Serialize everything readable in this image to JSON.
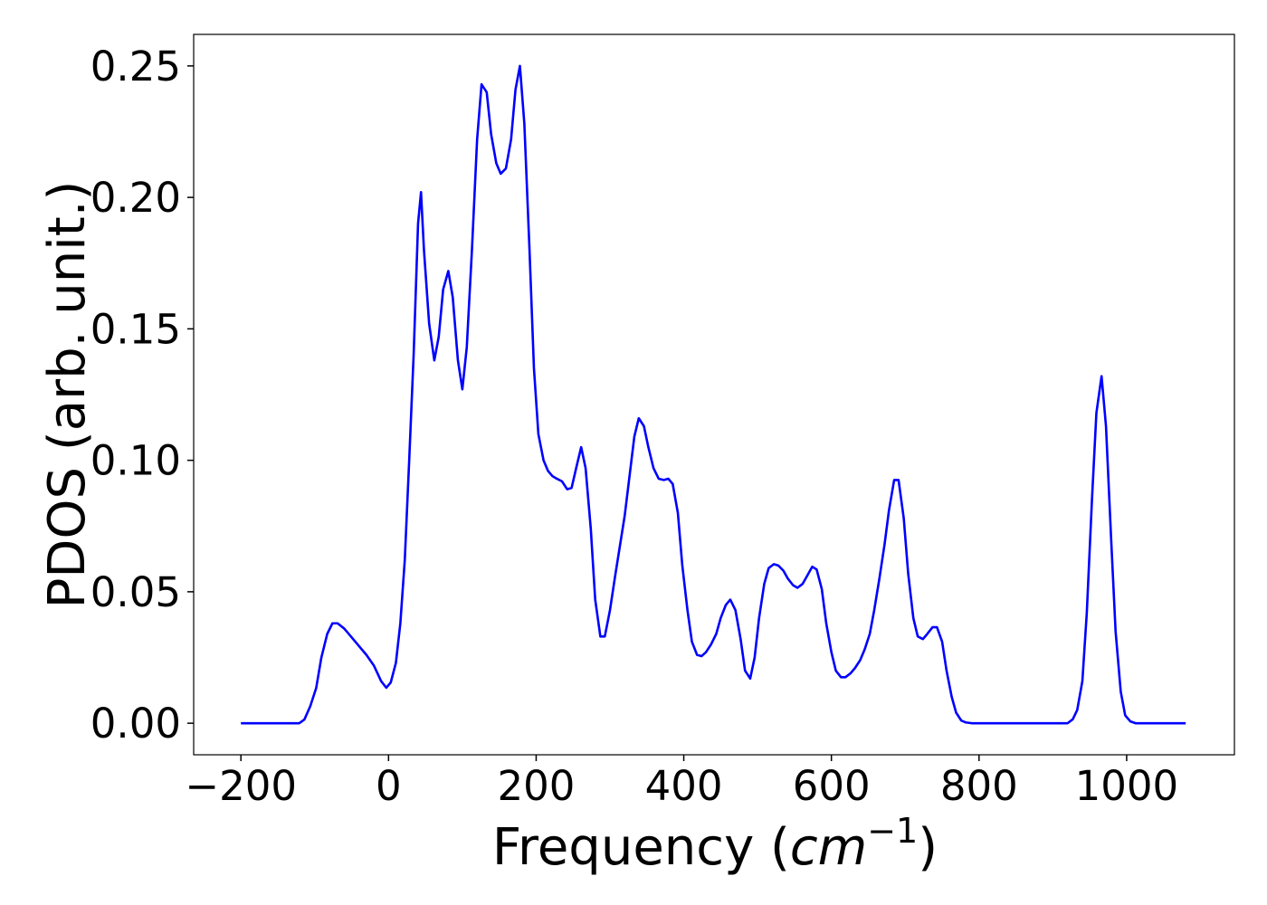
{
  "chart_data": {
    "type": "line",
    "xlabel": [
      "Frequency (",
      "cm",
      "−1",
      ")"
    ],
    "ylabel": "PDOS (arb. unit.)",
    "xlim": [
      -264,
      1146
    ],
    "ylim": [
      -0.012,
      0.262
    ],
    "xticks": [
      {
        "value": -200,
        "label": "−200"
      },
      0,
      200,
      400,
      600,
      800,
      1000
    ],
    "yticks": [
      {
        "value": 0,
        "label": "0.00"
      },
      {
        "value": 0.05,
        "label": "0.05"
      },
      {
        "value": 0.1,
        "label": "0.10"
      },
      {
        "value": 0.15,
        "label": "0.15"
      },
      {
        "value": 0.2,
        "label": "0.20"
      },
      {
        "value": 0.25,
        "label": "0.25"
      }
    ],
    "grid": false,
    "series": [
      {
        "color": "#0000ff",
        "x": [
          -200,
          -121,
          -114,
          -106,
          -98,
          -91,
          -83,
          -76,
          -69,
          -60,
          -45,
          -30,
          -20,
          -10,
          -3,
          3,
          10,
          16,
          22,
          28,
          34,
          40,
          44,
          48,
          55,
          62,
          68,
          74,
          81,
          87,
          94,
          100,
          106,
          113,
          120,
          126,
          133,
          139,
          146,
          152,
          159,
          166,
          172,
          178,
          184,
          191,
          197,
          203,
          210,
          216,
          222,
          228,
          235,
          242,
          248,
          255,
          261,
          267,
          274,
          280,
          287,
          293,
          300,
          307,
          320,
          333,
          339,
          346,
          352,
          359,
          366,
          373,
          379,
          385,
          392,
          398,
          405,
          411,
          418,
          424,
          430,
          437,
          444,
          450,
          457,
          463,
          470,
          477,
          483,
          490,
          496,
          502,
          509,
          515,
          522,
          528,
          535,
          541,
          548,
          554,
          561,
          567,
          574,
          580,
          587,
          593,
          600,
          606,
          613,
          619,
          626,
          632,
          639,
          645,
          652,
          658,
          665,
          672,
          678,
          685,
          691,
          698,
          704,
          711,
          717,
          724,
          730,
          737,
          743,
          750,
          756,
          763,
          769,
          776,
          782,
          790,
          920,
          927,
          933,
          940,
          946,
          953,
          959,
          966,
          972,
          979,
          985,
          992,
          998,
          1005,
          1012,
          1080
        ],
        "values": [
          0,
          0,
          0.0014,
          0.0065,
          0.0134,
          0.025,
          0.034,
          0.038,
          0.038,
          0.036,
          0.031,
          0.026,
          0.022,
          0.016,
          0.0135,
          0.0155,
          0.023,
          0.038,
          0.062,
          0.1,
          0.14,
          0.19,
          0.202,
          0.18,
          0.152,
          0.138,
          0.147,
          0.165,
          0.172,
          0.162,
          0.138,
          0.127,
          0.143,
          0.18,
          0.222,
          0.243,
          0.24,
          0.224,
          0.213,
          0.209,
          0.211,
          0.222,
          0.241,
          0.25,
          0.228,
          0.18,
          0.135,
          0.11,
          0.1,
          0.096,
          0.094,
          0.093,
          0.092,
          0.089,
          0.0895,
          0.098,
          0.105,
          0.097,
          0.074,
          0.047,
          0.033,
          0.033,
          0.043,
          0.056,
          0.079,
          0.109,
          0.116,
          0.113,
          0.105,
          0.097,
          0.093,
          0.0925,
          0.093,
          0.091,
          0.08,
          0.06,
          0.043,
          0.031,
          0.026,
          0.0255,
          0.027,
          0.03,
          0.034,
          0.04,
          0.045,
          0.047,
          0.043,
          0.032,
          0.02,
          0.017,
          0.025,
          0.04,
          0.053,
          0.059,
          0.0605,
          0.06,
          0.058,
          0.055,
          0.0525,
          0.0515,
          0.053,
          0.056,
          0.0595,
          0.0585,
          0.051,
          0.038,
          0.027,
          0.02,
          0.0175,
          0.0175,
          0.019,
          0.021,
          0.024,
          0.028,
          0.034,
          0.043,
          0.055,
          0.068,
          0.081,
          0.0925,
          0.0925,
          0.078,
          0.057,
          0.04,
          0.033,
          0.032,
          0.034,
          0.0365,
          0.0365,
          0.031,
          0.02,
          0.01,
          0.004,
          0.001,
          0.0003,
          0,
          0,
          0.0015,
          0.005,
          0.016,
          0.042,
          0.085,
          0.118,
          0.132,
          0.113,
          0.07,
          0.035,
          0.012,
          0.003,
          0.0007,
          0,
          0
        ]
      }
    ]
  }
}
